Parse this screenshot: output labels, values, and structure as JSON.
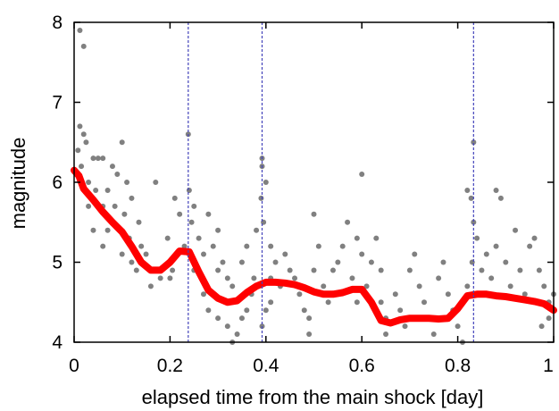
{
  "chart_data": {
    "type": "scatter",
    "xlabel": "elapsed time from the main shock [day]",
    "ylabel": "magnitude",
    "xlim": [
      0,
      1
    ],
    "ylim": [
      4,
      8
    ],
    "x_ticks": [
      {
        "value": 0,
        "label": "0"
      },
      {
        "value": 0.2,
        "label": "0.2"
      },
      {
        "value": 0.4,
        "label": "0.4"
      },
      {
        "value": 0.6,
        "label": "0.6"
      },
      {
        "value": 0.8,
        "label": "0.8"
      },
      {
        "value": 1,
        "label": "1"
      }
    ],
    "y_ticks": [
      {
        "value": 4,
        "label": "4"
      },
      {
        "value": 5,
        "label": "5"
      },
      {
        "value": 6,
        "label": "6"
      },
      {
        "value": 7,
        "label": "7"
      },
      {
        "value": 8,
        "label": "8"
      }
    ],
    "vertical_lines": [
      0.238,
      0.392,
      0.833
    ],
    "colors": {
      "points": "#808080",
      "trend": "#ff0000",
      "vlines": "#4444bb",
      "frame": "#000000"
    },
    "series": [
      {
        "type": "line",
        "x": [
          0,
          0.01,
          0.02,
          0.04,
          0.06,
          0.08,
          0.1,
          0.12,
          0.14,
          0.16,
          0.18,
          0.2,
          0.22,
          0.24,
          0.26,
          0.28,
          0.3,
          0.32,
          0.34,
          0.36,
          0.38,
          0.4,
          0.42,
          0.44,
          0.46,
          0.48,
          0.5,
          0.52,
          0.54,
          0.56,
          0.58,
          0.6,
          0.62,
          0.64,
          0.66,
          0.68,
          0.7,
          0.72,
          0.74,
          0.76,
          0.78,
          0.8,
          0.82,
          0.84,
          0.86,
          0.88,
          0.9,
          0.92,
          0.94,
          0.96,
          0.98,
          1.0
        ],
        "y": [
          6.15,
          6.08,
          5.92,
          5.78,
          5.63,
          5.5,
          5.38,
          5.2,
          5.0,
          4.9,
          4.9,
          5.0,
          5.14,
          5.13,
          4.88,
          4.65,
          4.55,
          4.5,
          4.52,
          4.62,
          4.7,
          4.75,
          4.75,
          4.74,
          4.72,
          4.68,
          4.63,
          4.6,
          4.6,
          4.62,
          4.66,
          4.66,
          4.5,
          4.27,
          4.24,
          4.28,
          4.3,
          4.3,
          4.3,
          4.29,
          4.3,
          4.42,
          4.58,
          4.6,
          4.6,
          4.58,
          4.57,
          4.55,
          4.53,
          4.51,
          4.48,
          4.4
        ]
      },
      {
        "type": "scatter",
        "points": [
          [
            0.012,
            7.9
          ],
          [
            0.02,
            7.7
          ],
          [
            0.012,
            6.7
          ],
          [
            0.02,
            6.6
          ],
          [
            0.025,
            6.5
          ],
          [
            0.1,
            6.5
          ],
          [
            0.04,
            6.3
          ],
          [
            0.05,
            6.3
          ],
          [
            0.06,
            6.3
          ],
          [
            0.008,
            6.4
          ],
          [
            0.015,
            6.2
          ],
          [
            0.03,
            6.0
          ],
          [
            0.08,
            6.2
          ],
          [
            0.09,
            6.1
          ],
          [
            0.11,
            6.0
          ],
          [
            0.045,
            5.9
          ],
          [
            0.07,
            5.9
          ],
          [
            0.12,
            5.8
          ],
          [
            0.03,
            5.7
          ],
          [
            0.06,
            5.7
          ],
          [
            0.085,
            5.7
          ],
          [
            0.105,
            5.6
          ],
          [
            0.135,
            5.5
          ],
          [
            0.04,
            5.4
          ],
          [
            0.07,
            5.4
          ],
          [
            0.115,
            5.3
          ],
          [
            0.14,
            5.2
          ],
          [
            0.06,
            5.2
          ],
          [
            0.1,
            5.1
          ],
          [
            0.12,
            5.0
          ],
          [
            0.15,
            5.1
          ],
          [
            0.16,
            4.9
          ],
          [
            0.13,
            4.9
          ],
          [
            0.18,
            4.8
          ],
          [
            0.2,
            4.8
          ],
          [
            0.17,
            6.0
          ],
          [
            0.21,
            5.8
          ],
          [
            0.22,
            5.6
          ],
          [
            0.195,
            5.3
          ],
          [
            0.23,
            5.2
          ],
          [
            0.16,
            4.7
          ],
          [
            0.205,
            4.9
          ],
          [
            0.238,
            6.6
          ],
          [
            0.24,
            5.9
          ],
          [
            0.25,
            5.7
          ],
          [
            0.245,
            5.5
          ],
          [
            0.26,
            5.3
          ],
          [
            0.27,
            5.1
          ],
          [
            0.25,
            4.9
          ],
          [
            0.28,
            5.6
          ],
          [
            0.3,
            5.4
          ],
          [
            0.29,
            5.2
          ],
          [
            0.3,
            4.9
          ],
          [
            0.31,
            5.0
          ],
          [
            0.32,
            4.8
          ],
          [
            0.33,
            4.7
          ],
          [
            0.27,
            4.6
          ],
          [
            0.28,
            4.4
          ],
          [
            0.3,
            4.3
          ],
          [
            0.32,
            4.2
          ],
          [
            0.33,
            4.0
          ],
          [
            0.34,
            4.1
          ],
          [
            0.35,
            4.3
          ],
          [
            0.36,
            4.4
          ],
          [
            0.37,
            4.6
          ],
          [
            0.35,
            5.0
          ],
          [
            0.36,
            5.2
          ],
          [
            0.38,
            5.4
          ],
          [
            0.375,
            4.8
          ],
          [
            0.392,
            6.3
          ],
          [
            0.392,
            6.2
          ],
          [
            0.39,
            5.8
          ],
          [
            0.4,
            6.0
          ],
          [
            0.395,
            5.5
          ],
          [
            0.41,
            5.2
          ],
          [
            0.42,
            5.0
          ],
          [
            0.41,
            4.8
          ],
          [
            0.43,
            4.7
          ],
          [
            0.392,
            4.2
          ],
          [
            0.4,
            4.4
          ],
          [
            0.41,
            4.5
          ],
          [
            0.44,
            5.1
          ],
          [
            0.45,
            4.9
          ],
          [
            0.46,
            4.8
          ],
          [
            0.47,
            4.6
          ],
          [
            0.48,
            4.4
          ],
          [
            0.49,
            4.3
          ],
          [
            0.49,
            4.1
          ],
          [
            0.5,
            5.6
          ],
          [
            0.51,
            5.2
          ],
          [
            0.5,
            4.9
          ],
          [
            0.52,
            4.7
          ],
          [
            0.53,
            4.5
          ],
          [
            0.54,
            4.9
          ],
          [
            0.55,
            5.0
          ],
          [
            0.56,
            5.2
          ],
          [
            0.57,
            5.5
          ],
          [
            0.59,
            5.3
          ],
          [
            0.6,
            5.1
          ],
          [
            0.6,
            6.1
          ],
          [
            0.58,
            4.8
          ],
          [
            0.59,
            4.5
          ],
          [
            0.61,
            4.7
          ],
          [
            0.62,
            5.0
          ],
          [
            0.63,
            5.3
          ],
          [
            0.64,
            4.9
          ],
          [
            0.64,
            4.5
          ],
          [
            0.65,
            4.3
          ],
          [
            0.65,
            4.1
          ],
          [
            0.67,
            4.6
          ],
          [
            0.68,
            4.4
          ],
          [
            0.69,
            4.2
          ],
          [
            0.7,
            4.9
          ],
          [
            0.71,
            5.1
          ],
          [
            0.72,
            4.7
          ],
          [
            0.73,
            4.5
          ],
          [
            0.74,
            4.3
          ],
          [
            0.75,
            4.1
          ],
          [
            0.76,
            4.8
          ],
          [
            0.77,
            5.0
          ],
          [
            0.78,
            4.6
          ],
          [
            0.79,
            4.4
          ],
          [
            0.8,
            4.2
          ],
          [
            0.81,
            4.0
          ],
          [
            0.82,
            4.7
          ],
          [
            0.82,
            5.9
          ],
          [
            0.828,
            5.8
          ],
          [
            0.833,
            6.5
          ],
          [
            0.833,
            5.5
          ],
          [
            0.84,
            5.3
          ],
          [
            0.83,
            5.0
          ],
          [
            0.85,
            4.9
          ],
          [
            0.86,
            5.1
          ],
          [
            0.87,
            4.8
          ],
          [
            0.88,
            5.9
          ],
          [
            0.89,
            5.8
          ],
          [
            0.88,
            5.2
          ],
          [
            0.9,
            5.0
          ],
          [
            0.91,
            4.7
          ],
          [
            0.92,
            5.4
          ],
          [
            0.93,
            4.9
          ],
          [
            0.94,
            4.6
          ],
          [
            0.95,
            5.2
          ],
          [
            0.96,
            5.3
          ],
          [
            0.97,
            4.9
          ],
          [
            0.98,
            4.7
          ],
          [
            0.99,
            4.5
          ],
          [
            1.0,
            4.6
          ],
          [
            0.99,
            4.3
          ],
          [
            0.975,
            4.2
          ]
        ]
      }
    ]
  }
}
